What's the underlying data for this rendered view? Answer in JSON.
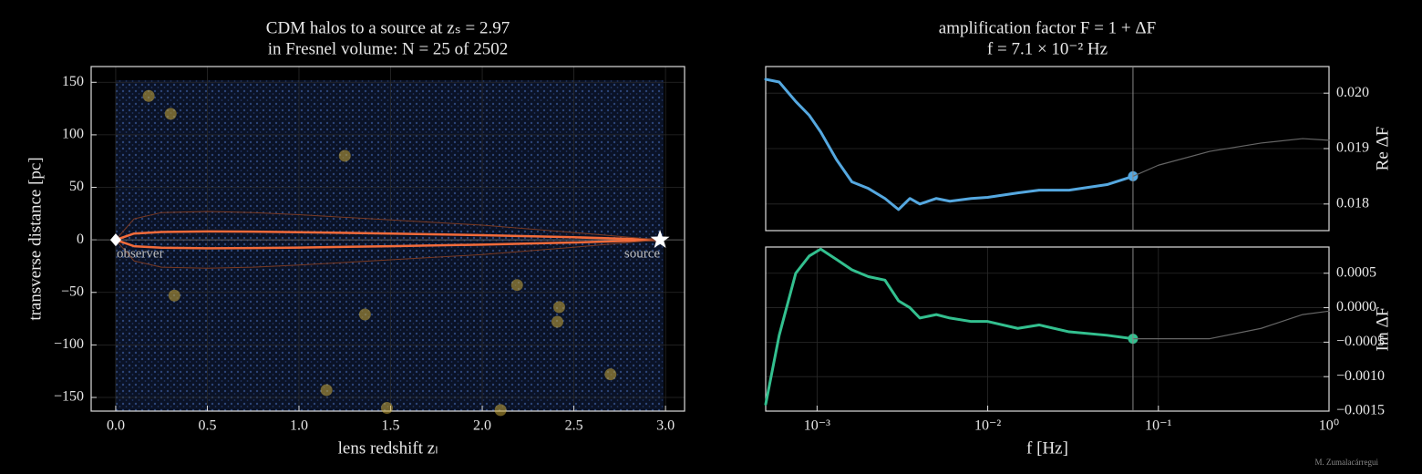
{
  "credit": "M. Zumalacárregui",
  "chart_data": [
    {
      "type": "scatter",
      "title": [
        "CDM halos to a source at zₛ = 2.97",
        "in Fresnel volume: N = 25 of 2502"
      ],
      "xlabel": "lens redshift zₗ",
      "ylabel": "transverse distance [pc]",
      "xlim": [
        -0.134,
        3.104
      ],
      "ylim": [
        -163,
        165
      ],
      "xticks": [
        {
          "value": 0,
          "label": "0.0"
        },
        0.5,
        {
          "value": 1,
          "label": "1.0"
        },
        1.5,
        {
          "value": 2,
          "label": "2.0"
        },
        2.5,
        {
          "value": 3,
          "label": "3.0"
        }
      ],
      "yticks": [
        150,
        100,
        50,
        0,
        {
          "value": -50,
          "label": "−50"
        },
        {
          "value": -100,
          "label": "−100"
        },
        {
          "value": -150,
          "label": "−150"
        }
      ],
      "grid": true,
      "halos": {
        "color": "#c9a83a",
        "x": [
          0.18,
          0.3,
          1.25,
          0.32,
          1.36,
          2.19,
          2.42,
          2.41,
          2.7,
          1.15,
          1.48,
          2.1
        ],
        "y": [
          137,
          120,
          80,
          -53,
          -71,
          -43,
          -64,
          -78,
          -128,
          -143,
          -160,
          -162
        ]
      },
      "curves": [
        {
          "color": "#f26b3a",
          "width": 2.5,
          "x": [
            0,
            0.1,
            0.25,
            0.5,
            0.75,
            1,
            1.5,
            2,
            2.5,
            2.97
          ],
          "y": [
            0,
            6,
            7.5,
            8,
            7.8,
            7.3,
            6,
            4.5,
            2.5,
            0
          ]
        },
        {
          "color": "#f26b3a",
          "width": 2.5,
          "x": [
            0,
            0.1,
            0.25,
            0.5,
            0.75,
            1,
            1.5,
            2,
            2.5,
            2.97
          ],
          "y": [
            0,
            -6,
            -7.5,
            -8,
            -7.8,
            -7.3,
            -6,
            -4.5,
            -2.5,
            0
          ]
        },
        {
          "color": "#7a3a22",
          "width": 1,
          "x": [
            0,
            0.1,
            0.25,
            0.5,
            0.75,
            1,
            1.5,
            2,
            2.5,
            2.97
          ],
          "y": [
            0,
            20,
            26,
            27,
            26,
            24,
            19,
            14,
            7,
            0
          ]
        },
        {
          "color": "#7a3a22",
          "width": 1,
          "x": [
            0,
            0.1,
            0.25,
            0.5,
            0.75,
            1,
            1.5,
            2,
            2.5,
            2.97
          ],
          "y": [
            0,
            -20,
            -26,
            -27,
            -26,
            -24,
            -19,
            -14,
            -7,
            0
          ]
        }
      ],
      "markers": [
        {
          "label": "observer",
          "x": 0,
          "y": 0,
          "shape": "diamond"
        },
        {
          "label": "source",
          "x": 2.97,
          "y": 0,
          "shape": "star"
        }
      ]
    },
    {
      "type": "line",
      "title": [
        "amplification factor F = 1 + ΔF",
        "f = 7.1 × 10⁻² Hz"
      ],
      "ylabel": "Re ΔF",
      "log_x": true,
      "grid": true,
      "vline": 0.071,
      "xlim": [
        0.0005,
        1
      ],
      "ylim": [
        0.01752,
        0.02048
      ],
      "yticks": [
        {
          "value": 0.02,
          "label": "0.020"
        },
        0.019,
        0.018
      ],
      "x": [
        0.0005,
        0.0006,
        0.00075,
        0.0009,
        0.00105,
        0.0013,
        0.0016,
        0.002,
        0.0025,
        0.003,
        0.0035,
        0.004,
        0.005,
        0.006,
        0.008,
        0.01,
        0.015,
        0.02,
        0.03,
        0.05,
        0.071,
        0.1,
        0.2,
        0.4,
        0.7,
        1
      ],
      "series": [
        {
          "color": "#55a8e0",
          "width": 3,
          "marker_last": true,
          "values": [
            0.02025,
            0.0202,
            0.01985,
            0.0196,
            0.0193,
            0.0188,
            0.0184,
            0.01828,
            0.0181,
            0.0179,
            0.0181,
            0.018,
            0.0181,
            0.01805,
            0.0181,
            0.01812,
            0.0182,
            0.01825,
            0.01825,
            0.01835,
            0.0185,
            null,
            null,
            null,
            null,
            null
          ]
        },
        {
          "color": "#666666",
          "width": 1.2,
          "values": [
            null,
            null,
            null,
            null,
            null,
            null,
            null,
            null,
            null,
            null,
            null,
            null,
            null,
            null,
            null,
            null,
            null,
            null,
            null,
            null,
            0.0185,
            0.0187,
            0.01895,
            0.0191,
            0.01918,
            0.01915
          ]
        }
      ]
    },
    {
      "type": "line",
      "ylabel": "Im ΔF",
      "xlabel": "f [Hz]",
      "log_x": true,
      "grid": true,
      "vline": 0.071,
      "xlim": [
        0.0005,
        1
      ],
      "ylim": [
        -0.0015,
        0.00088
      ],
      "xticks": [
        {
          "value": 0.001,
          "label": "10⁻³"
        },
        {
          "value": 0.01,
          "label": "10⁻²"
        },
        {
          "value": 0.1,
          "label": "10⁻¹"
        },
        {
          "value": 1,
          "label": "10⁰"
        }
      ],
      "yticks": [
        {
          "value": 0.0005,
          "label": "0.0005"
        },
        {
          "value": 0,
          "label": "0.0000"
        },
        {
          "value": -0.0005,
          "label": "−0.0005"
        },
        {
          "value": -0.001,
          "label": "−0.0010"
        },
        {
          "value": -0.0015,
          "label": "−0.0015"
        }
      ],
      "x": [
        0.0005,
        0.0006,
        0.00075,
        0.0009,
        0.00105,
        0.0013,
        0.0016,
        0.002,
        0.0025,
        0.003,
        0.0035,
        0.004,
        0.005,
        0.006,
        0.008,
        0.01,
        0.015,
        0.02,
        0.03,
        0.05,
        0.071,
        0.1,
        0.2,
        0.4,
        0.7,
        1
      ],
      "series": [
        {
          "color": "#33c08f",
          "width": 3,
          "marker_last": true,
          "values": [
            -0.0014,
            -0.0004,
            0.0005,
            0.00075,
            0.00085,
            0.0007,
            0.00055,
            0.00045,
            0.0004,
            0.0001,
            0,
            -0.00015,
            -0.0001,
            -0.00015,
            -0.0002,
            -0.0002,
            -0.0003,
            -0.00025,
            -0.00035,
            -0.0004,
            -0.00045,
            null,
            null,
            null,
            null,
            null
          ]
        },
        {
          "color": "#666666",
          "width": 1.2,
          "values": [
            null,
            null,
            null,
            null,
            null,
            null,
            null,
            null,
            null,
            null,
            null,
            null,
            null,
            null,
            null,
            null,
            null,
            null,
            null,
            null,
            -0.00045,
            -0.00045,
            -0.00045,
            -0.0003,
            -0.0001,
            -5e-05
          ]
        }
      ]
    }
  ]
}
